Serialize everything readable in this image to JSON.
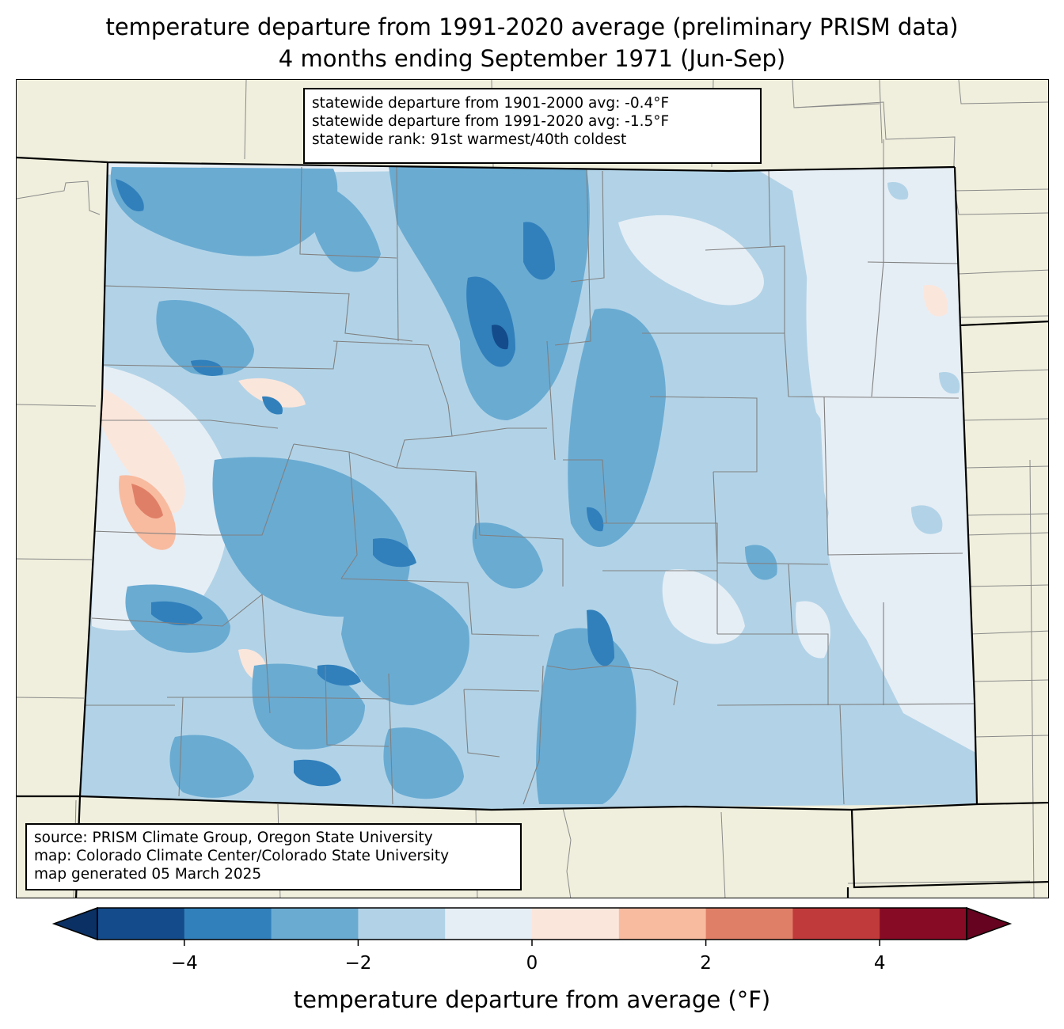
{
  "title": {
    "line1": "temperature departure from 1991-2020 average (preliminary PRISM data)",
    "line2": "4 months ending September 1971 (Jun-Sep)"
  },
  "stats": {
    "departure_1901_2000": "statewide departure from 1901-2000 avg: -0.4°F",
    "departure_1991_2020": "statewide departure from 1991-2020 avg: -1.5°F",
    "rank": "statewide rank: 91st warmest/40th coldest"
  },
  "source": {
    "line1": "source: PRISM Climate Group, Oregon State University",
    "line2": "map: Colorado Climate Center/Colorado State University",
    "line3": "map generated 05 March 2025"
  },
  "colorbar": {
    "label": "temperature departure from average (°F)",
    "ticks": [
      "−4",
      "−2",
      "0",
      "2",
      "4"
    ],
    "tick_values": [
      -4,
      -2,
      0,
      2,
      4
    ],
    "bins": [
      {
        "from": -5,
        "to": -4,
        "color": "#144b8a"
      },
      {
        "from": -4,
        "to": -3,
        "color": "#3180bc"
      },
      {
        "from": -3,
        "to": -2,
        "color": "#6aabd2"
      },
      {
        "from": -2,
        "to": -1,
        "color": "#b2d3e7"
      },
      {
        "from": -1,
        "to": 0,
        "color": "#e6eef5"
      },
      {
        "from": 0,
        "to": 1,
        "color": "#fbe6dc"
      },
      {
        "from": 1,
        "to": 2,
        "color": "#f8bba0"
      },
      {
        "from": 2,
        "to": 3,
        "color": "#e07f67"
      },
      {
        "from": 3,
        "to": 4,
        "color": "#c03a3b"
      },
      {
        "from": 4,
        "to": 5,
        "color": "#870b25"
      }
    ],
    "under_color": "#0b3063",
    "over_color": "#650320",
    "range": [
      -5,
      5
    ]
  },
  "map_colors": {
    "background": "#f0efdd",
    "county_lines": "#808080",
    "state_lines": "#000000"
  }
}
